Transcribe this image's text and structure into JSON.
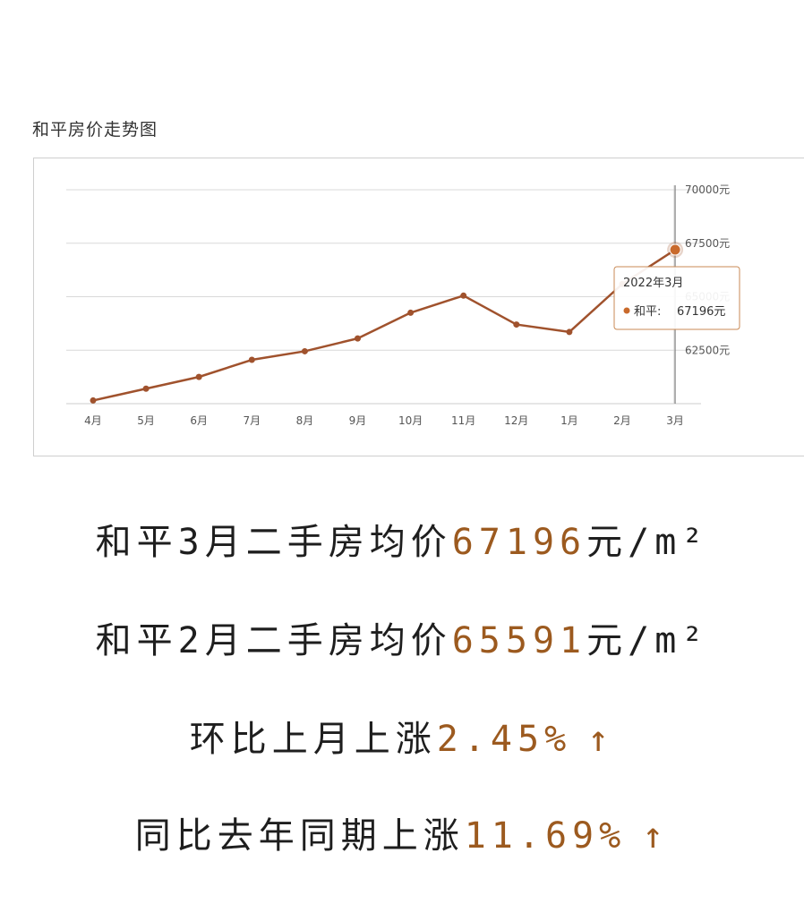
{
  "chart_data": {
    "type": "line",
    "title": "和平房价走势图",
    "categories": [
      "4月",
      "5月",
      "6月",
      "7月",
      "8月",
      "9月",
      "10月",
      "11月",
      "12月",
      "1月",
      "2月",
      "3月"
    ],
    "series": [
      {
        "name": "和平",
        "values": [
          60150,
          60700,
          61250,
          62050,
          62450,
          63050,
          64250,
          65050,
          63700,
          63350,
          65591,
          67196
        ]
      }
    ],
    "y_ticks": [
      "62500元",
      "65000元",
      "67500元",
      "70000元"
    ],
    "ylim": [
      60000,
      70000
    ],
    "grid": true,
    "y_axis_position": "right",
    "line_color": "#a0522d",
    "tooltip": {
      "title": "2022年3月",
      "series_label": "和平:",
      "value_text": "67196元",
      "index": 11
    }
  },
  "summary": [
    {
      "prefix": "和平3月二手房均价",
      "value": "67196",
      "suffix": "元/m²",
      "arrow": ""
    },
    {
      "prefix": "和平2月二手房均价",
      "value": "65591",
      "suffix": "元/m²",
      "arrow": ""
    },
    {
      "prefix": "环比上月上涨",
      "value": "2.45%",
      "suffix": "",
      "arrow": "↑"
    },
    {
      "prefix": "同比去年同期上涨",
      "value": "11.69%",
      "suffix": "",
      "arrow": "↑"
    }
  ]
}
